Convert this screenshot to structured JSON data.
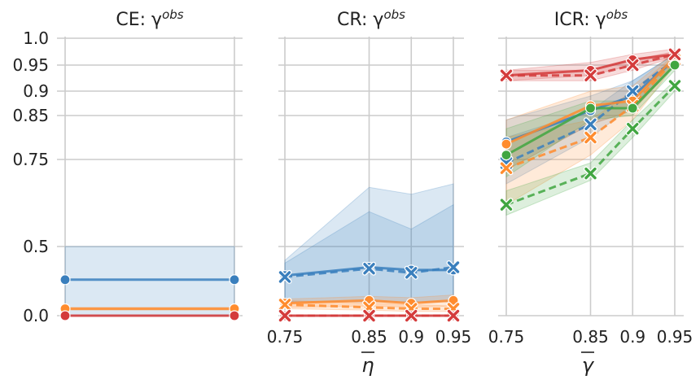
{
  "colors": {
    "blue": "#3a7fbd",
    "orange": "#ff8c2e",
    "green": "#41a641",
    "red": "#d43b3b",
    "grid": "#cccccc",
    "band_alpha": 0.18
  },
  "chart_data": [
    {
      "type": "line",
      "title": "CE: γ",
      "title_sup": "obs",
      "xlabel": "",
      "x": [
        0.75,
        0.95
      ],
      "xticks": [],
      "ylim": [
        0,
        1.0
      ],
      "yticks": [
        0.0,
        0.5,
        0.75,
        0.85,
        0.9,
        0.95,
        1.0
      ],
      "ytick_labels": [
        "0.0",
        "0.5",
        "0.75",
        "0.85",
        "0.9",
        "0.95",
        "1.0"
      ],
      "y_scale": "nonlinear",
      "grid": true,
      "series": [
        {
          "color": "blue",
          "marker": "o",
          "dash": false,
          "values": [
            0.26,
            0.26
          ],
          "band_low": [
            0.0,
            0.0
          ],
          "band_high": [
            0.5,
            0.5
          ]
        },
        {
          "color": "orange",
          "marker": "o",
          "dash": false,
          "values": [
            0.05,
            0.05
          ],
          "band_low": [
            0.04,
            0.04
          ],
          "band_high": [
            0.06,
            0.06
          ]
        },
        {
          "color": "red",
          "marker": "o",
          "dash": false,
          "values": [
            0.0,
            0.0
          ],
          "band_low": [
            0.0,
            0.0
          ],
          "band_high": [
            0.0,
            0.0
          ]
        }
      ]
    },
    {
      "type": "line",
      "title": "CR: γ",
      "title_sup": "obs",
      "xlabel": "η",
      "x": [
        0.75,
        0.85,
        0.9,
        0.95
      ],
      "xticks": [
        0.75,
        0.85,
        0.9,
        0.95
      ],
      "xtick_labels": [
        "0.75",
        "0.85",
        "0.9",
        "0.95"
      ],
      "ylim": [
        0,
        1.0
      ],
      "yticks": [
        0.0,
        0.5,
        0.75,
        0.85,
        0.9,
        0.95,
        1.0
      ],
      "grid": true,
      "series": [
        {
          "color": "blue",
          "marker": "o",
          "dash": false,
          "values": [
            0.29,
            0.35,
            0.33,
            0.33
          ],
          "band_low": [
            0.1,
            0.1,
            0.1,
            0.1
          ],
          "band_high": [
            0.4,
            0.67,
            0.65,
            0.68
          ]
        },
        {
          "color": "blue",
          "marker": "x",
          "dash": true,
          "values": [
            0.28,
            0.34,
            0.31,
            0.35
          ],
          "band_low": [
            0.1,
            0.1,
            0.1,
            0.1
          ],
          "band_high": [
            0.38,
            0.6,
            0.55,
            0.62
          ]
        },
        {
          "color": "orange",
          "marker": "o",
          "dash": false,
          "values": [
            0.09,
            0.11,
            0.09,
            0.11
          ],
          "band_low": [
            0.06,
            0.07,
            0.06,
            0.07
          ],
          "band_high": [
            0.12,
            0.14,
            0.13,
            0.15
          ]
        },
        {
          "color": "orange",
          "marker": "x",
          "dash": true,
          "values": [
            0.08,
            0.06,
            0.05,
            0.05
          ],
          "band_low": [
            0.05,
            0.04,
            0.03,
            0.03
          ],
          "band_high": [
            0.11,
            0.09,
            0.08,
            0.07
          ]
        },
        {
          "color": "red",
          "marker": "o",
          "dash": false,
          "values": [
            0.0,
            0.0,
            0.0,
            0.0
          ],
          "band_low": [
            0.0,
            0.0,
            0.0,
            0.0
          ],
          "band_high": [
            0.0,
            0.0,
            0.0,
            0.0
          ]
        },
        {
          "color": "red",
          "marker": "x",
          "dash": true,
          "values": [
            0.0,
            0.0,
            0.0,
            0.0
          ],
          "band_low": [
            0.0,
            0.0,
            0.0,
            0.0
          ],
          "band_high": [
            0.0,
            0.0,
            0.0,
            0.0
          ]
        }
      ]
    },
    {
      "type": "line",
      "title": "ICR: γ",
      "title_sup": "obs",
      "xlabel": "γ",
      "x": [
        0.75,
        0.85,
        0.9,
        0.95
      ],
      "xticks": [
        0.75,
        0.85,
        0.9,
        0.95
      ],
      "xtick_labels": [
        "0.75",
        "0.85",
        "0.9",
        "0.95"
      ],
      "ylim": [
        0,
        1.0
      ],
      "yticks": [
        0.0,
        0.5,
        0.75,
        0.85,
        0.9,
        0.95,
        1.0
      ],
      "grid": true,
      "series": [
        {
          "color": "blue",
          "marker": "o",
          "dash": false,
          "values": [
            0.79,
            0.86,
            0.89,
            0.96
          ],
          "band_low": [
            0.72,
            0.83,
            0.86,
            0.95
          ],
          "band_high": [
            0.84,
            0.89,
            0.92,
            0.97
          ]
        },
        {
          "color": "blue",
          "marker": "x",
          "dash": true,
          "values": [
            0.74,
            0.83,
            0.9,
            0.96
          ],
          "band_low": [
            0.68,
            0.8,
            0.87,
            0.95
          ],
          "band_high": [
            0.8,
            0.86,
            0.92,
            0.97
          ]
        },
        {
          "color": "orange",
          "marker": "o",
          "dash": false,
          "values": [
            0.785,
            0.87,
            0.88,
            0.965
          ],
          "band_low": [
            0.72,
            0.83,
            0.86,
            0.95
          ],
          "band_high": [
            0.84,
            0.9,
            0.91,
            0.975
          ]
        },
        {
          "color": "orange",
          "marker": "x",
          "dash": true,
          "values": [
            0.725,
            0.8,
            0.87,
            0.96
          ],
          "band_low": [
            0.62,
            0.76,
            0.84,
            0.95
          ],
          "band_high": [
            0.8,
            0.84,
            0.9,
            0.97
          ]
        },
        {
          "color": "green",
          "marker": "o",
          "dash": false,
          "values": [
            0.76,
            0.865,
            0.865,
            0.95
          ],
          "band_low": [
            0.7,
            0.84,
            0.85,
            0.94
          ],
          "band_high": [
            0.82,
            0.88,
            0.88,
            0.96
          ]
        },
        {
          "color": "green",
          "marker": "x",
          "dash": true,
          "values": [
            0.62,
            0.71,
            0.82,
            0.91
          ],
          "band_low": [
            0.59,
            0.69,
            0.8,
            0.9
          ],
          "band_high": [
            0.66,
            0.74,
            0.84,
            0.92
          ]
        },
        {
          "color": "red",
          "marker": "o",
          "dash": false,
          "values": [
            0.93,
            0.94,
            0.96,
            0.97
          ],
          "band_low": [
            0.92,
            0.93,
            0.95,
            0.965
          ],
          "band_high": [
            0.94,
            0.955,
            0.97,
            0.98
          ]
        },
        {
          "color": "red",
          "marker": "x",
          "dash": true,
          "values": [
            0.93,
            0.93,
            0.95,
            0.97
          ],
          "band_low": [
            0.92,
            0.92,
            0.94,
            0.965
          ],
          "band_high": [
            0.94,
            0.94,
            0.96,
            0.975
          ]
        }
      ]
    }
  ]
}
